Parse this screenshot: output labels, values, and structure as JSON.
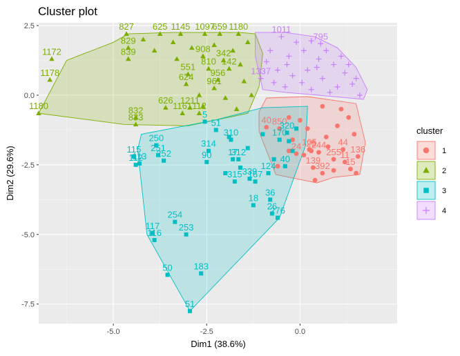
{
  "chart_data": {
    "type": "scatter",
    "title": "Cluster plot",
    "xlabel": "Dim1 (38.6%)",
    "ylabel": "Dim2 (29.6%)",
    "xlim": [
      -7.0,
      2.6
    ],
    "ylim": [
      -8.2,
      2.6
    ],
    "x_ticks": [
      -5.0,
      -2.5,
      0.0
    ],
    "x_tick_labels": [
      "-5.0",
      "-2.5",
      "0.0"
    ],
    "y_ticks": [
      2.5,
      0.0,
      -2.5,
      -5.0,
      -7.5
    ],
    "y_tick_labels": [
      "2.5",
      "0.0",
      "-2.5",
      "-5.0",
      "-7.5"
    ],
    "grid": true,
    "legend": {
      "title": "cluster",
      "placement": "right",
      "entries": [
        "1",
        "2",
        "3",
        "4"
      ]
    },
    "series": [
      {
        "name": "1",
        "color": "#F8766D",
        "marker": "circle",
        "hull": [
          [
            -1.1,
            -0.6
          ],
          [
            -0.9,
            -0.1
          ],
          [
            0.2,
            -0.05
          ],
          [
            1.5,
            -0.3
          ],
          [
            1.75,
            -1.7
          ],
          [
            1.6,
            -2.85
          ],
          [
            0.9,
            -2.95
          ],
          [
            0.45,
            -3.15
          ],
          [
            -0.65,
            -2.85
          ],
          [
            -1.1,
            -1.3
          ]
        ],
        "points": [
          {
            "x": 1.15,
            "y": -1.95,
            "label": "44"
          },
          {
            "x": 1.55,
            "y": -2.2,
            "label": "136"
          },
          {
            "x": 1.35,
            "y": -2.65,
            "label": "15"
          },
          {
            "x": 1.2,
            "y": -2.4,
            "label": "11"
          },
          {
            "x": 0.9,
            "y": -2.3,
            "label": "255"
          },
          {
            "x": 0.35,
            "y": -2.6,
            "label": "139"
          },
          {
            "x": 0.6,
            "y": -2.8,
            "label": "392"
          },
          {
            "x": 0.3,
            "y": -2.0,
            "label": "25"
          },
          {
            "x": 0.25,
            "y": -1.95,
            "label": "105"
          },
          {
            "x": -0.55,
            "y": -1.2,
            "label": "850"
          },
          {
            "x": -0.9,
            "y": -1.15,
            "label": "40"
          },
          {
            "x": -0.1,
            "y": -2.1,
            "label": "24"
          },
          {
            "x": 0.5,
            "y": -2.05,
            "label": "244"
          },
          {
            "x": 0.1,
            "y": -2.15,
            "label": ""
          },
          {
            "x": -0.3,
            "y": -2.0,
            "label": ""
          },
          {
            "x": 0.7,
            "y": -1.5,
            "label": ""
          },
          {
            "x": 1.0,
            "y": -1.1,
            "label": ""
          },
          {
            "x": 1.3,
            "y": -0.8,
            "label": ""
          },
          {
            "x": 1.45,
            "y": -1.4,
            "label": ""
          },
          {
            "x": 0.2,
            "y": -1.2,
            "label": ""
          },
          {
            "x": -0.3,
            "y": -0.8,
            "label": ""
          },
          {
            "x": 0.6,
            "y": -0.4,
            "label": ""
          },
          {
            "x": 1.1,
            "y": -0.5,
            "label": ""
          },
          {
            "x": 0.9,
            "y": -2.7,
            "label": ""
          },
          {
            "x": 0.4,
            "y": -3.05,
            "label": ""
          },
          {
            "x": -0.2,
            "y": -1.6,
            "label": ""
          },
          {
            "x": 0.0,
            "y": -0.9,
            "label": ""
          },
          {
            "x": 1.5,
            "y": -2.8,
            "label": ""
          },
          {
            "x": 0.75,
            "y": -1.85,
            "label": ""
          },
          {
            "x": -0.6,
            "y": -2.55,
            "label": ""
          }
        ]
      },
      {
        "name": "2",
        "color": "#7CAE00",
        "marker": "triangle",
        "hull": [
          [
            -7.0,
            -0.65
          ],
          [
            -6.25,
            1.25
          ],
          [
            -5.0,
            1.9
          ],
          [
            -4.6,
            2.2
          ],
          [
            -3.4,
            2.25
          ],
          [
            -1.6,
            2.25
          ],
          [
            -1.2,
            2.2
          ],
          [
            -1.0,
            1.5
          ],
          [
            -1.1,
            0.3
          ],
          [
            -1.4,
            -0.65
          ],
          [
            -3.0,
            -1.1
          ],
          [
            -4.7,
            -1.05
          ]
        ],
        "points": [
          {
            "x": -6.65,
            "y": 1.3,
            "label": "1172"
          },
          {
            "x": -6.7,
            "y": 0.55,
            "label": "1178"
          },
          {
            "x": -7.0,
            "y": -0.65,
            "label": "1180"
          },
          {
            "x": -4.65,
            "y": 2.2,
            "label": "827"
          },
          {
            "x": -4.6,
            "y": 1.7,
            "label": "829"
          },
          {
            "x": -4.6,
            "y": 1.3,
            "label": "839"
          },
          {
            "x": -3.75,
            "y": 2.2,
            "label": "625"
          },
          {
            "x": -3.2,
            "y": 2.2,
            "label": "1145"
          },
          {
            "x": -2.55,
            "y": 2.2,
            "label": "1097"
          },
          {
            "x": -2.15,
            "y": 2.2,
            "label": "659"
          },
          {
            "x": -1.65,
            "y": 2.2,
            "label": "1180"
          },
          {
            "x": -2.6,
            "y": 1.4,
            "label": "908"
          },
          {
            "x": -2.05,
            "y": 1.25,
            "label": "342"
          },
          {
            "x": -3.0,
            "y": 0.75,
            "label": "551"
          },
          {
            "x": -2.45,
            "y": 0.95,
            "label": "810"
          },
          {
            "x": -2.2,
            "y": 0.55,
            "label": "956"
          },
          {
            "x": -1.9,
            "y": 0.95,
            "label": "142"
          },
          {
            "x": -3.05,
            "y": 0.4,
            "label": "624"
          },
          {
            "x": -2.3,
            "y": 0.25,
            "label": "961"
          },
          {
            "x": -4.4,
            "y": -0.8,
            "label": "832"
          },
          {
            "x": -4.4,
            "y": -1.05,
            "label": "833"
          },
          {
            "x": -3.6,
            "y": -0.45,
            "label": "626"
          },
          {
            "x": -3.15,
            "y": -0.65,
            "label": "1161"
          },
          {
            "x": -2.95,
            "y": -0.45,
            "label": "1211"
          },
          {
            "x": -2.7,
            "y": -0.65,
            "label": "112"
          },
          {
            "x": -4.2,
            "y": 2.0,
            "label": ""
          },
          {
            "x": -3.9,
            "y": 1.6,
            "label": ""
          },
          {
            "x": -3.4,
            "y": 1.9,
            "label": ""
          },
          {
            "x": -2.9,
            "y": 1.7,
            "label": ""
          },
          {
            "x": -2.3,
            "y": 1.8,
            "label": ""
          },
          {
            "x": -1.8,
            "y": 1.6,
            "label": ""
          },
          {
            "x": -1.4,
            "y": 1.9,
            "label": ""
          },
          {
            "x": -1.6,
            "y": 1.1,
            "label": ""
          },
          {
            "x": -1.5,
            "y": 0.5,
            "label": ""
          },
          {
            "x": -1.3,
            "y": 0.0,
            "label": ""
          },
          {
            "x": -2.0,
            "y": -0.1,
            "label": ""
          },
          {
            "x": -2.6,
            "y": -0.4,
            "label": ""
          },
          {
            "x": -1.7,
            "y": -0.5,
            "label": ""
          },
          {
            "x": -3.3,
            "y": 1.3,
            "label": ""
          },
          {
            "x": -2.7,
            "y": 0.0,
            "label": ""
          }
        ]
      },
      {
        "name": "3",
        "color": "#00BFC4",
        "marker": "square",
        "hull": [
          [
            -4.35,
            -1.95
          ],
          [
            -4.1,
            -5.0
          ],
          [
            -2.95,
            -7.75
          ],
          [
            -0.55,
            -4.4
          ],
          [
            0.15,
            -1.8
          ],
          [
            0.2,
            -0.4
          ],
          [
            -1.0,
            -0.45
          ],
          [
            -2.3,
            -0.9
          ],
          [
            -4.25,
            -1.4
          ]
        ],
        "points": [
          {
            "x": -4.45,
            "y": -2.2,
            "label": "115"
          },
          {
            "x": -4.4,
            "y": -2.5,
            "label": "112"
          },
          {
            "x": -4.3,
            "y": -2.45,
            "label": "113"
          },
          {
            "x": -3.85,
            "y": -1.8,
            "label": "250"
          },
          {
            "x": -3.8,
            "y": -2.15,
            "label": "251"
          },
          {
            "x": -3.65,
            "y": -2.35,
            "label": "252"
          },
          {
            "x": -3.35,
            "y": -4.55,
            "label": "254"
          },
          {
            "x": -3.05,
            "y": -5.0,
            "label": "253"
          },
          {
            "x": -3.95,
            "y": -4.95,
            "label": "117"
          },
          {
            "x": -3.9,
            "y": -5.2,
            "label": "116"
          },
          {
            "x": -3.55,
            "y": -6.45,
            "label": "50"
          },
          {
            "x": -2.65,
            "y": -6.4,
            "label": "183"
          },
          {
            "x": -2.95,
            "y": -7.75,
            "label": "51"
          },
          {
            "x": -2.55,
            "y": -0.95,
            "label": "5"
          },
          {
            "x": -2.25,
            "y": -1.25,
            "label": "51"
          },
          {
            "x": -2.45,
            "y": -2.0,
            "label": "314"
          },
          {
            "x": -2.5,
            "y": -2.4,
            "label": "90"
          },
          {
            "x": -1.8,
            "y": -2.3,
            "label": "17"
          },
          {
            "x": -1.85,
            "y": -1.6,
            "label": "310"
          },
          {
            "x": -1.65,
            "y": -2.3,
            "label": "312"
          },
          {
            "x": -1.75,
            "y": -3.1,
            "label": "315"
          },
          {
            "x": -1.35,
            "y": -3.0,
            "label": "339"
          },
          {
            "x": -1.2,
            "y": -3.1,
            "label": "167"
          },
          {
            "x": -1.25,
            "y": -3.95,
            "label": "18"
          },
          {
            "x": -0.8,
            "y": -3.75,
            "label": "36"
          },
          {
            "x": -0.75,
            "y": -4.25,
            "label": "26"
          },
          {
            "x": -0.6,
            "y": -4.4,
            "label": "276"
          },
          {
            "x": -0.85,
            "y": -2.8,
            "label": "124"
          },
          {
            "x": -0.7,
            "y": -2.3,
            "label": ""
          },
          {
            "x": -0.4,
            "y": -2.55,
            "label": "40"
          },
          {
            "x": -0.35,
            "y": -1.35,
            "label": "320"
          },
          {
            "x": -0.3,
            "y": -1.65,
            "label": ""
          },
          {
            "x": -0.55,
            "y": -1.6,
            "label": "170"
          },
          {
            "x": -1.4,
            "y": -1.9,
            "label": ""
          },
          {
            "x": -1.0,
            "y": -1.4,
            "label": ""
          },
          {
            "x": -2.0,
            "y": -2.8,
            "label": ""
          },
          {
            "x": -1.6,
            "y": -2.6,
            "label": ""
          },
          {
            "x": -0.2,
            "y": -2.0,
            "label": ""
          },
          {
            "x": -0.1,
            "y": -1.2,
            "label": ""
          },
          {
            "x": -1.9,
            "y": -1.5,
            "label": ""
          }
        ]
      },
      {
        "name": "4",
        "color": "#C77CFF",
        "marker": "cross",
        "hull": [
          [
            -1.2,
            2.25
          ],
          [
            -0.4,
            2.25
          ],
          [
            0.4,
            2.1
          ],
          [
            1.0,
            1.7
          ],
          [
            1.5,
            1.0
          ],
          [
            1.8,
            0.2
          ],
          [
            1.7,
            -0.15
          ],
          [
            0.5,
            0.0
          ],
          [
            -0.4,
            0.1
          ],
          [
            -1.0,
            0.2
          ],
          [
            -1.2,
            1.4
          ]
        ],
        "points": [
          {
            "x": 0.55,
            "y": 1.85,
            "label": "795"
          },
          {
            "x": -0.5,
            "y": 2.1,
            "label": "1011"
          },
          {
            "x": -1.05,
            "y": 0.6,
            "label": "1337"
          },
          {
            "x": -0.8,
            "y": 1.6,
            "label": ""
          },
          {
            "x": -0.3,
            "y": 1.4,
            "label": ""
          },
          {
            "x": 0.1,
            "y": 1.6,
            "label": ""
          },
          {
            "x": 0.5,
            "y": 1.3,
            "label": ""
          },
          {
            "x": 0.9,
            "y": 1.1,
            "label": ""
          },
          {
            "x": 1.2,
            "y": 0.8,
            "label": ""
          },
          {
            "x": 1.4,
            "y": 0.4,
            "label": ""
          },
          {
            "x": 1.0,
            "y": 0.3,
            "label": ""
          },
          {
            "x": 0.6,
            "y": 0.6,
            "label": ""
          },
          {
            "x": 0.2,
            "y": 0.9,
            "label": ""
          },
          {
            "x": -0.2,
            "y": 0.7,
            "label": ""
          },
          {
            "x": -0.6,
            "y": 0.9,
            "label": ""
          },
          {
            "x": -0.9,
            "y": 1.2,
            "label": ""
          },
          {
            "x": -0.4,
            "y": 0.3,
            "label": ""
          },
          {
            "x": 0.3,
            "y": 0.2,
            "label": ""
          },
          {
            "x": 0.8,
            "y": 0.1,
            "label": ""
          },
          {
            "x": 1.6,
            "y": 0.0,
            "label": ""
          },
          {
            "x": -0.1,
            "y": 1.9,
            "label": ""
          },
          {
            "x": 0.3,
            "y": 1.95,
            "label": ""
          },
          {
            "x": 0.7,
            "y": 1.6,
            "label": ""
          },
          {
            "x": 1.1,
            "y": 1.4,
            "label": ""
          },
          {
            "x": -0.7,
            "y": 0.45,
            "label": ""
          },
          {
            "x": 0.05,
            "y": 0.45,
            "label": ""
          },
          {
            "x": 0.45,
            "y": 1.0,
            "label": ""
          },
          {
            "x": 1.3,
            "y": 1.1,
            "label": ""
          },
          {
            "x": -0.35,
            "y": 1.1,
            "label": ""
          },
          {
            "x": 1.5,
            "y": 0.6,
            "label": ""
          }
        ]
      }
    ]
  }
}
